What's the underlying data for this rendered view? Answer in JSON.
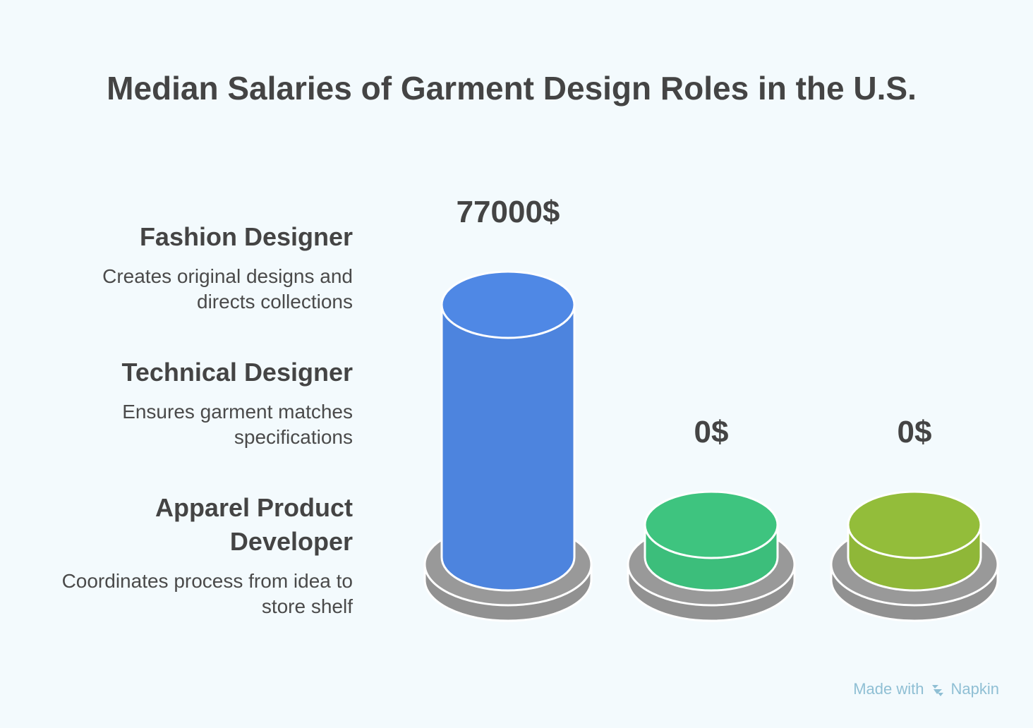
{
  "chart_data": {
    "type": "bar",
    "title": "Median Salaries of Garment Design Roles in the U.S.",
    "categories": [
      "Fashion Designer",
      "Technical Designer",
      "Apparel Product Developer"
    ],
    "values": [
      77000,
      0,
      0
    ],
    "value_labels": [
      "77000$",
      "0$",
      "0$"
    ],
    "descriptions": [
      "Creates original designs and directs collections",
      "Ensures garment matches specifications",
      "Coordinates process from idea to store shelf"
    ],
    "colors": [
      "#4f88e5",
      "#3ec47f",
      "#93bd3a"
    ],
    "base_color": "#999999",
    "ylim": [
      0,
      77000
    ]
  },
  "footer": {
    "made_with": "Made with",
    "brand": "Napkin",
    "icon": "napkin-logo-icon"
  }
}
